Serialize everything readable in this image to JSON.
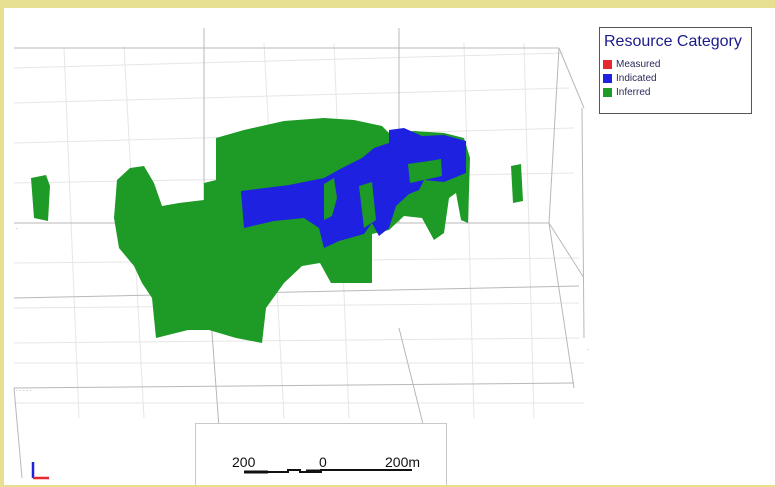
{
  "legend": {
    "title": "Resource Category",
    "items": [
      {
        "label": "Measured",
        "color": "#e8262d"
      },
      {
        "label": "Indicated",
        "color": "#1e21e0"
      },
      {
        "label": "Inferred",
        "color": "#1e9a26"
      }
    ]
  },
  "scale_bar": {
    "left_label": "200",
    "center_label": "0",
    "right_label": "200m"
  },
  "colors": {
    "indicated": "#1e21e0",
    "inferred": "#1e9a26",
    "viewport_border": "#e7e091",
    "axis_x": "#e8262d",
    "axis_y": "#1e21e0"
  },
  "icons": {
    "axis_triad": "xyz-axis-triad-icon"
  }
}
